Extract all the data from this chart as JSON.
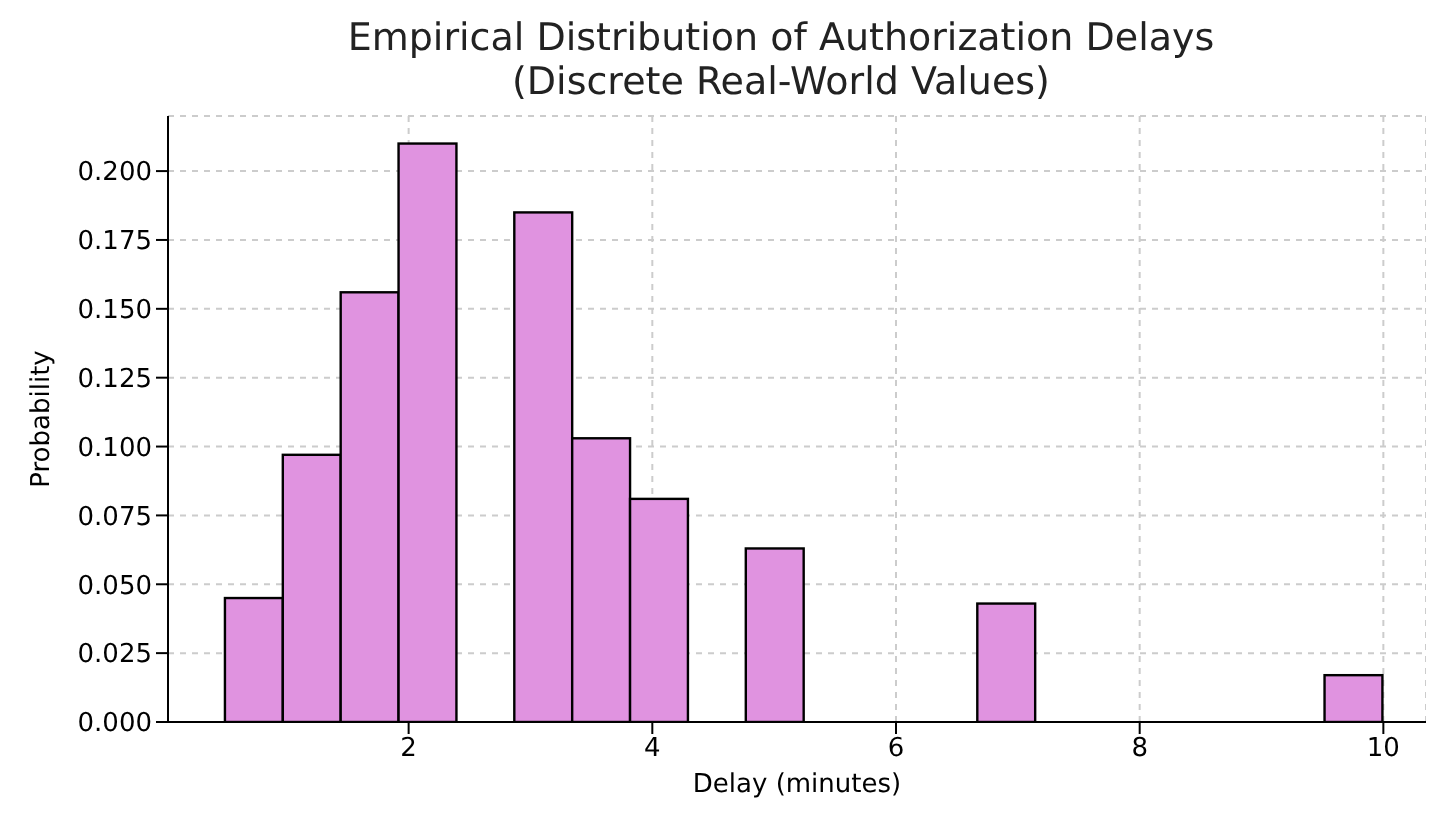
{
  "chart_data": {
    "type": "histogram",
    "title": "Empirical Distribution of Authorization Delays\n(Discrete Real-World Values)",
    "xlabel": "Delay (minutes)",
    "ylabel": "Probability",
    "bins": [
      0.5,
      0.975,
      1.45,
      1.925,
      2.4,
      2.875,
      3.35,
      3.825,
      4.3,
      4.775,
      5.25,
      5.725,
      6.2,
      6.675,
      7.15,
      7.625,
      8.1,
      8.575,
      9.05,
      9.525,
      10.0
    ],
    "values": [
      0.045,
      0.097,
      0.156,
      0.21,
      0,
      0.185,
      0.103,
      0.081,
      0,
      0.063,
      0,
      0,
      0,
      0.043,
      0,
      0,
      0,
      0,
      0,
      0.017
    ],
    "color": "#e093e0",
    "xlim": [
      0.025,
      10.35
    ],
    "xticks": [
      2,
      4,
      6,
      8,
      10
    ],
    "ylim": [
      0,
      0.22
    ],
    "yticks": [
      {
        "value": 0,
        "label": "0.000"
      },
      {
        "value": 0.025,
        "label": "0.025"
      },
      {
        "value": 0.05,
        "label": "0.050"
      },
      {
        "value": 0.075,
        "label": "0.075"
      },
      {
        "value": 0.1,
        "label": "0.100"
      },
      {
        "value": 0.125,
        "label": "0.125"
      },
      {
        "value": 0.15,
        "label": "0.150"
      },
      {
        "value": 0.175,
        "label": "0.175"
      },
      {
        "value": 0.2,
        "label": "0.200"
      }
    ],
    "grid": true
  }
}
